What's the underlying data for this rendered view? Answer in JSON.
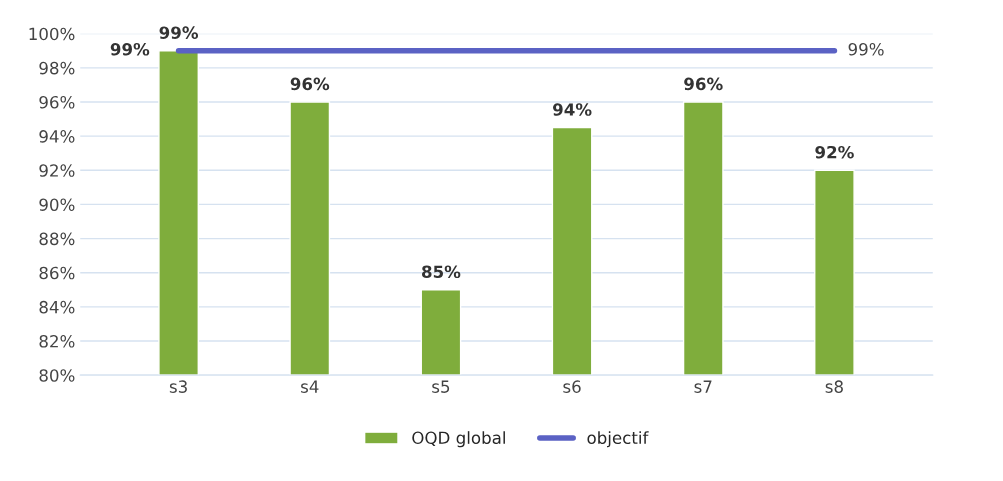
{
  "chart_data": {
    "type": "bar",
    "categories": [
      "s3",
      "s4",
      "s5",
      "s6",
      "s7",
      "s8"
    ],
    "series": [
      {
        "name": "OQD global",
        "color": "#7fad3c",
        "values": [
          99,
          96,
          85,
          94.5,
          96,
          92
        ],
        "value_labels": [
          "99%",
          "96%",
          "85%",
          "94%",
          "96%",
          "92%"
        ]
      },
      {
        "name": "objectif",
        "type": "line",
        "color": "#5b62c4",
        "values": [
          99,
          99,
          99,
          99,
          99,
          99
        ],
        "value_labels": [
          "99%",
          null,
          null,
          null,
          null,
          "99%"
        ]
      }
    ],
    "ylim": [
      80,
      100
    ],
    "yticks": [
      {
        "value": 80,
        "label": "80%"
      },
      {
        "value": 82,
        "label": "82%"
      },
      {
        "value": 84,
        "label": "84%"
      },
      {
        "value": 86,
        "label": "86%"
      },
      {
        "value": 88,
        "label": "88%"
      },
      {
        "value": 90,
        "label": "90%"
      },
      {
        "value": 92,
        "label": "92%"
      },
      {
        "value": 94,
        "label": "94%"
      },
      {
        "value": 96,
        "label": "96%"
      },
      {
        "value": 98,
        "label": "98%"
      },
      {
        "value": 100,
        "label": "100%"
      }
    ],
    "grid": "y",
    "legend": "bottom",
    "marker": "none",
    "line_style": "solid"
  }
}
